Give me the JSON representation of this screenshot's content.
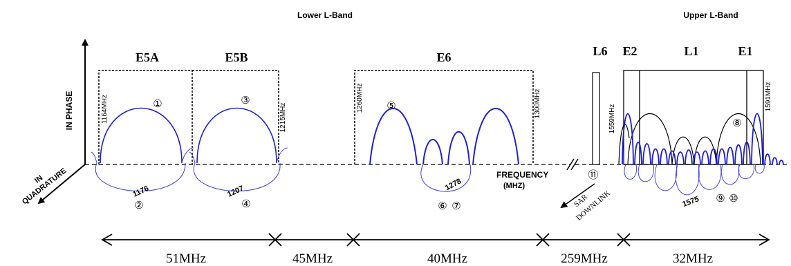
{
  "headers": {
    "lower": "Lower L-Band",
    "upper": "Upper L-Band"
  },
  "axes": {
    "in_phase": "IN PHASE",
    "in_quadrature": "IN QUADRATURE",
    "frequency": "FREQUENCY",
    "frequency_unit": "(MHZ)"
  },
  "bands": {
    "e5a": "E5A",
    "e5b": "E5B",
    "e6": "E6",
    "l6": "L6",
    "e2": "E2",
    "l1": "L1",
    "e1": "E1"
  },
  "freq_labels": {
    "f1164": "1164MHz",
    "f1215": "1215MHz",
    "f1260": "1260MHz",
    "f1300": "1300MHz",
    "f1559": "1559MHz",
    "f1591": "1591MHz"
  },
  "centers": {
    "c1176": "1176",
    "c1207": "1207",
    "c1278": "1278",
    "c1575": "1575"
  },
  "markers": {
    "m1": "①",
    "m2": "②",
    "m3": "③",
    "m4": "④",
    "m5": "⑤",
    "m6": "⑥",
    "m7": "⑦",
    "m8": "⑧",
    "m9": "⑨",
    "m10": "⑩",
    "m11": "⑪"
  },
  "sar": {
    "line1": "SAR",
    "line2": "DOWNLINK"
  },
  "spans": {
    "s1": "51MHz",
    "s2": "45MHz",
    "s3": "40MHz",
    "s4": "259MHz",
    "s5": "32MHz"
  },
  "colors": {
    "signal": "#1f1fcf",
    "ink": "#000000"
  }
}
